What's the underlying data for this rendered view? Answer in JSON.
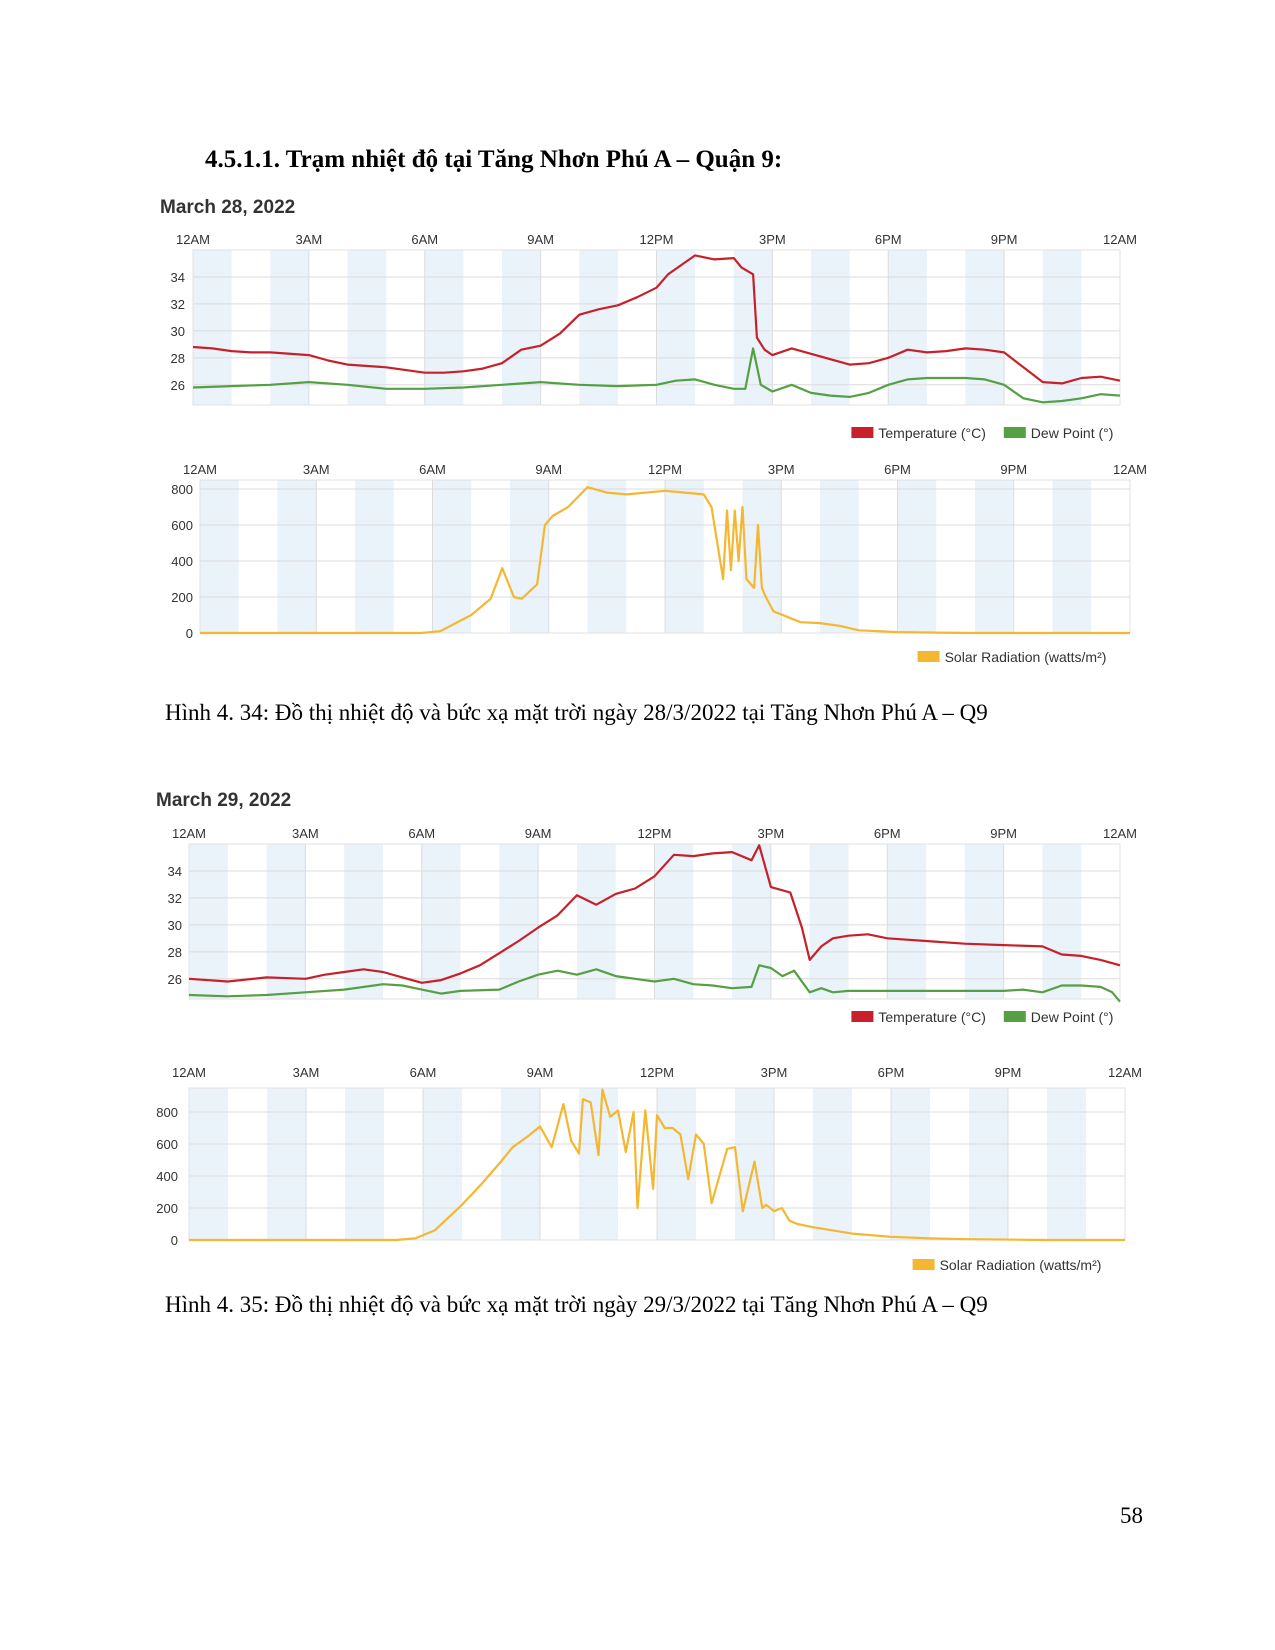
{
  "section_heading": "4.5.1.1. Trạm nhiệt độ tại Tăng Nhơn Phú A – Quận 9:",
  "page_number": "58",
  "colors": {
    "temperature": "#c8202a",
    "dew_point": "#55a042",
    "solar": "#f5b731",
    "band": "#eaf2fa",
    "grid": "#dcdcdc"
  },
  "figures": [
    {
      "date_title": "March 28, 2022",
      "caption": "Hình 4. 34: Đồ thị nhiệt độ và bức xạ mặt trời ngày 28/3/2022 tại Tăng Nhơn Phú A – Q9",
      "temp_legend": [
        "Temperature (°C)",
        "Dew Point (°)"
      ],
      "solar_legend": "Solar Radiation (watts/m²)"
    },
    {
      "date_title": "March 29, 2022",
      "caption": "Hình 4. 35: Đồ thị nhiệt độ và bức xạ mặt trời ngày 29/3/2022 tại Tăng Nhơn Phú A – Q9",
      "temp_legend": [
        "Temperature (°C)",
        "Dew Point (°)"
      ],
      "solar_legend": "Solar Radiation (watts/m²)"
    }
  ],
  "chart_data": [
    {
      "type": "line",
      "title": "March 28, 2022",
      "x_unit": "hour of day",
      "xlim": [
        0,
        24
      ],
      "x_tick_labels": [
        "12AM",
        "3AM",
        "6AM",
        "9AM",
        "12PM",
        "3PM",
        "6PM",
        "9PM",
        "12AM"
      ],
      "ylim": [
        24.5,
        36
      ],
      "y_ticks": [
        26,
        28,
        30,
        32,
        34
      ],
      "grid": true,
      "legend": "bottom-right",
      "series": [
        {
          "name": "Temperature (°C)",
          "color": "#c8202a",
          "x": [
            0,
            0.5,
            1,
            1.5,
            2,
            3,
            3.5,
            4,
            5,
            6,
            6.5,
            7,
            7.5,
            8,
            8.5,
            9,
            9.5,
            10,
            10.5,
            11,
            11.5,
            12,
            12.3,
            12.7,
            13,
            13.5,
            14,
            14.2,
            14.5,
            14.6,
            14.8,
            15,
            15.5,
            16,
            16.5,
            17,
            17.5,
            18,
            18.5,
            19,
            19.5,
            20,
            20.5,
            21,
            21.5,
            22,
            22.5,
            23,
            23.5,
            24
          ],
          "y": [
            28.8,
            28.7,
            28.5,
            28.4,
            28.4,
            28.2,
            27.8,
            27.5,
            27.3,
            26.9,
            26.9,
            27.0,
            27.2,
            27.6,
            28.6,
            28.9,
            29.8,
            31.2,
            31.6,
            31.9,
            32.5,
            33.2,
            34.2,
            35.0,
            35.6,
            35.3,
            35.4,
            34.7,
            34.2,
            29.5,
            28.6,
            28.2,
            28.7,
            28.3,
            27.9,
            27.5,
            27.6,
            28.0,
            28.6,
            28.4,
            28.5,
            28.7,
            28.6,
            28.4,
            27.3,
            26.2,
            26.1,
            26.5,
            26.6,
            26.3
          ]
        },
        {
          "name": "Dew Point (°)",
          "color": "#55a042",
          "x": [
            0,
            1,
            2,
            3,
            4,
            5,
            6,
            7,
            8,
            9,
            10,
            11,
            12,
            12.5,
            13,
            13.5,
            14,
            14.3,
            14.5,
            14.7,
            15,
            15.5,
            16,
            16.5,
            17,
            17.5,
            18,
            18.5,
            19,
            19.5,
            20,
            20.5,
            21,
            21.5,
            22,
            22.5,
            23,
            23.5,
            24
          ],
          "y": [
            25.8,
            25.9,
            26.0,
            26.2,
            26.0,
            25.7,
            25.7,
            25.8,
            26.0,
            26.2,
            26.0,
            25.9,
            26.0,
            26.3,
            26.4,
            26.0,
            25.7,
            25.7,
            28.7,
            26.0,
            25.5,
            26.0,
            25.4,
            25.2,
            25.1,
            25.4,
            26.0,
            26.4,
            26.5,
            26.5,
            26.5,
            26.4,
            26.0,
            25.0,
            24.7,
            24.8,
            25.0,
            25.3,
            25.2
          ]
        }
      ]
    },
    {
      "type": "area",
      "title": "March 28, 2022",
      "x_unit": "hour of day",
      "xlim": [
        0,
        24
      ],
      "x_tick_labels": [
        "12AM",
        "3AM",
        "6AM",
        "9AM",
        "12PM",
        "3PM",
        "6PM",
        "9PM",
        "12AM"
      ],
      "ylim": [
        0,
        850
      ],
      "y_ticks": [
        0,
        200,
        400,
        600,
        800
      ],
      "grid": true,
      "legend": "bottom-right",
      "series": [
        {
          "name": "Solar Radiation (watts/m²)",
          "color": "#f5b731",
          "x": [
            0,
            5,
            5.7,
            6.2,
            7,
            7.5,
            7.8,
            8.1,
            8.3,
            8.7,
            8.9,
            9.1,
            9.5,
            10,
            10.5,
            11,
            12,
            12.5,
            13,
            13.2,
            13.5,
            13.6,
            13.7,
            13.8,
            13.9,
            14,
            14.1,
            14.3,
            14.4,
            14.5,
            14.6,
            14.8,
            15.5,
            16,
            16.5,
            17,
            18,
            19,
            20,
            21,
            22,
            24
          ],
          "y": [
            0,
            0,
            0,
            10,
            100,
            190,
            360,
            200,
            190,
            270,
            600,
            650,
            700,
            810,
            780,
            770,
            790,
            780,
            770,
            700,
            300,
            680,
            350,
            680,
            400,
            700,
            300,
            250,
            600,
            250,
            200,
            120,
            60,
            55,
            40,
            15,
            5,
            2,
            0,
            0,
            0,
            0
          ]
        }
      ]
    },
    {
      "type": "line",
      "title": "March 29, 2022",
      "x_unit": "hour of day",
      "xlim": [
        0,
        24
      ],
      "x_tick_labels": [
        "12AM",
        "3AM",
        "6AM",
        "9AM",
        "12PM",
        "3PM",
        "6PM",
        "9PM",
        "12AM"
      ],
      "ylim": [
        24.5,
        36
      ],
      "y_ticks": [
        26,
        28,
        30,
        32,
        34
      ],
      "grid": true,
      "legend": "bottom-right",
      "series": [
        {
          "name": "Temperature (°C)",
          "color": "#c8202a",
          "x": [
            0,
            1,
            2,
            3,
            3.5,
            4,
            4.5,
            5,
            5.5,
            6,
            6.5,
            7,
            7.5,
            8,
            8.5,
            9,
            9.5,
            10,
            10.5,
            11,
            11.5,
            12,
            12.5,
            13,
            13.5,
            14,
            14.5,
            14.7,
            15,
            15.5,
            15.8,
            16,
            16.3,
            16.6,
            17,
            17.5,
            18,
            19,
            20,
            21,
            22,
            22.5,
            23,
            23.5,
            24
          ],
          "y": [
            26.0,
            25.8,
            26.1,
            26.0,
            26.3,
            26.5,
            26.7,
            26.5,
            26.1,
            25.7,
            25.9,
            26.4,
            27.0,
            27.9,
            28.8,
            29.8,
            30.7,
            32.2,
            31.5,
            32.3,
            32.7,
            33.6,
            35.2,
            35.1,
            35.3,
            35.4,
            34.8,
            35.9,
            32.8,
            32.4,
            29.8,
            27.4,
            28.4,
            29.0,
            29.2,
            29.3,
            29.0,
            28.8,
            28.6,
            28.5,
            28.4,
            27.8,
            27.7,
            27.4,
            27.0
          ]
        },
        {
          "name": "Dew Point (°)",
          "color": "#55a042",
          "x": [
            0,
            1,
            2,
            3,
            4,
            5,
            5.5,
            6,
            6.5,
            7,
            8,
            8.5,
            9,
            9.5,
            10,
            10.5,
            11,
            11.5,
            12,
            12.5,
            13,
            13.5,
            14,
            14.5,
            14.7,
            15,
            15.3,
            15.6,
            16,
            16.3,
            16.6,
            17,
            18,
            19,
            20,
            21,
            21.5,
            22,
            22.5,
            23,
            23.5,
            23.8,
            24
          ],
          "y": [
            24.8,
            24.7,
            24.8,
            25.0,
            25.2,
            25.6,
            25.5,
            25.2,
            24.9,
            25.1,
            25.2,
            25.8,
            26.3,
            26.6,
            26.3,
            26.7,
            26.2,
            26.0,
            25.8,
            26.0,
            25.6,
            25.5,
            25.3,
            25.4,
            27.0,
            26.8,
            26.2,
            26.6,
            25.0,
            25.3,
            25.0,
            25.1,
            25.1,
            25.1,
            25.1,
            25.1,
            25.2,
            25.0,
            25.5,
            25.5,
            25.4,
            25.0,
            24.3
          ]
        }
      ]
    },
    {
      "type": "area",
      "title": "March 29, 2022",
      "x_unit": "hour of day",
      "xlim": [
        0,
        24
      ],
      "x_tick_labels": [
        "12AM",
        "3AM",
        "6AM",
        "9AM",
        "12PM",
        "3PM",
        "6PM",
        "9PM",
        "12AM"
      ],
      "ylim": [
        0,
        950
      ],
      "y_ticks": [
        0,
        200,
        400,
        600,
        800
      ],
      "grid": true,
      "legend": "bottom-right",
      "series": [
        {
          "name": "Solar Radiation (watts/m²)",
          "color": "#f5b731",
          "x": [
            0,
            5.3,
            5.8,
            6.3,
            7,
            7.5,
            8,
            8.3,
            8.7,
            9,
            9.3,
            9.6,
            9.8,
            10,
            10.1,
            10.3,
            10.5,
            10.6,
            10.8,
            11,
            11.2,
            11.4,
            11.5,
            11.7,
            11.9,
            12,
            12.2,
            12.4,
            12.6,
            12.8,
            13,
            13.2,
            13.4,
            13.6,
            13.8,
            14,
            14.2,
            14.5,
            14.7,
            14.8,
            15,
            15.2,
            15.4,
            15.6,
            16,
            17,
            18,
            19,
            20,
            22,
            24
          ],
          "y": [
            0,
            0,
            10,
            60,
            220,
            350,
            490,
            580,
            650,
            710,
            580,
            850,
            620,
            540,
            880,
            860,
            530,
            940,
            770,
            810,
            550,
            800,
            200,
            810,
            320,
            780,
            700,
            700,
            660,
            380,
            660,
            600,
            230,
            400,
            570,
            580,
            180,
            490,
            200,
            220,
            180,
            200,
            120,
            100,
            80,
            40,
            20,
            10,
            5,
            0,
            0
          ]
        }
      ]
    }
  ]
}
